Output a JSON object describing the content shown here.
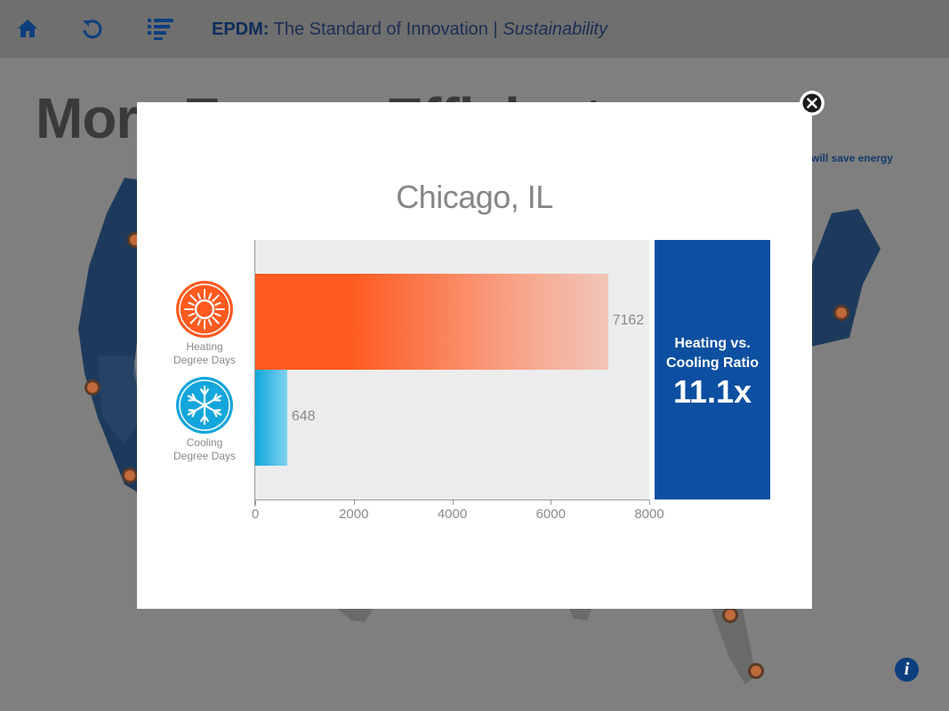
{
  "header": {
    "brand": "EPDM:",
    "title_main": " The Standard of Innovation",
    "separator": " | ",
    "title_sub": "Sustainability",
    "icons": [
      "home-icon",
      "refresh-icon",
      "list-menu-icon"
    ]
  },
  "background": {
    "heading_visible": "More Energy Efficient",
    "note_fragment": "m will save energy"
  },
  "modal": {
    "title": "Chicago, IL",
    "categories": [
      {
        "label_line1": "Heating",
        "label_line2": "Degree Days",
        "icon": "sun-icon",
        "color": "#ff5a1f"
      },
      {
        "label_line1": "Cooling",
        "label_line2": "Degree Days",
        "icon": "snowflake-icon",
        "color": "#12a6dc"
      }
    ],
    "ratio_label_line1": "Heating vs.",
    "ratio_label_line2": "Cooling Ratio",
    "ratio_value": "11.1x",
    "ratio_color": "#0d4fa0"
  },
  "chart_data": {
    "type": "bar",
    "orientation": "horizontal",
    "title": "Chicago, IL",
    "categories": [
      "Heating Degree Days",
      "Cooling Degree Days"
    ],
    "values": [
      7162,
      648
    ],
    "value_labels": [
      "7162",
      "648"
    ],
    "xlim": [
      0,
      8000
    ],
    "x_ticks": [
      "0",
      "2000",
      "4000",
      "6000",
      "8000"
    ],
    "grid": false
  },
  "colors": {
    "accent": "#0d4fa0",
    "heating": "#ff5a1f",
    "cooling": "#12a6dc",
    "overlay": "#7f7f7f"
  }
}
